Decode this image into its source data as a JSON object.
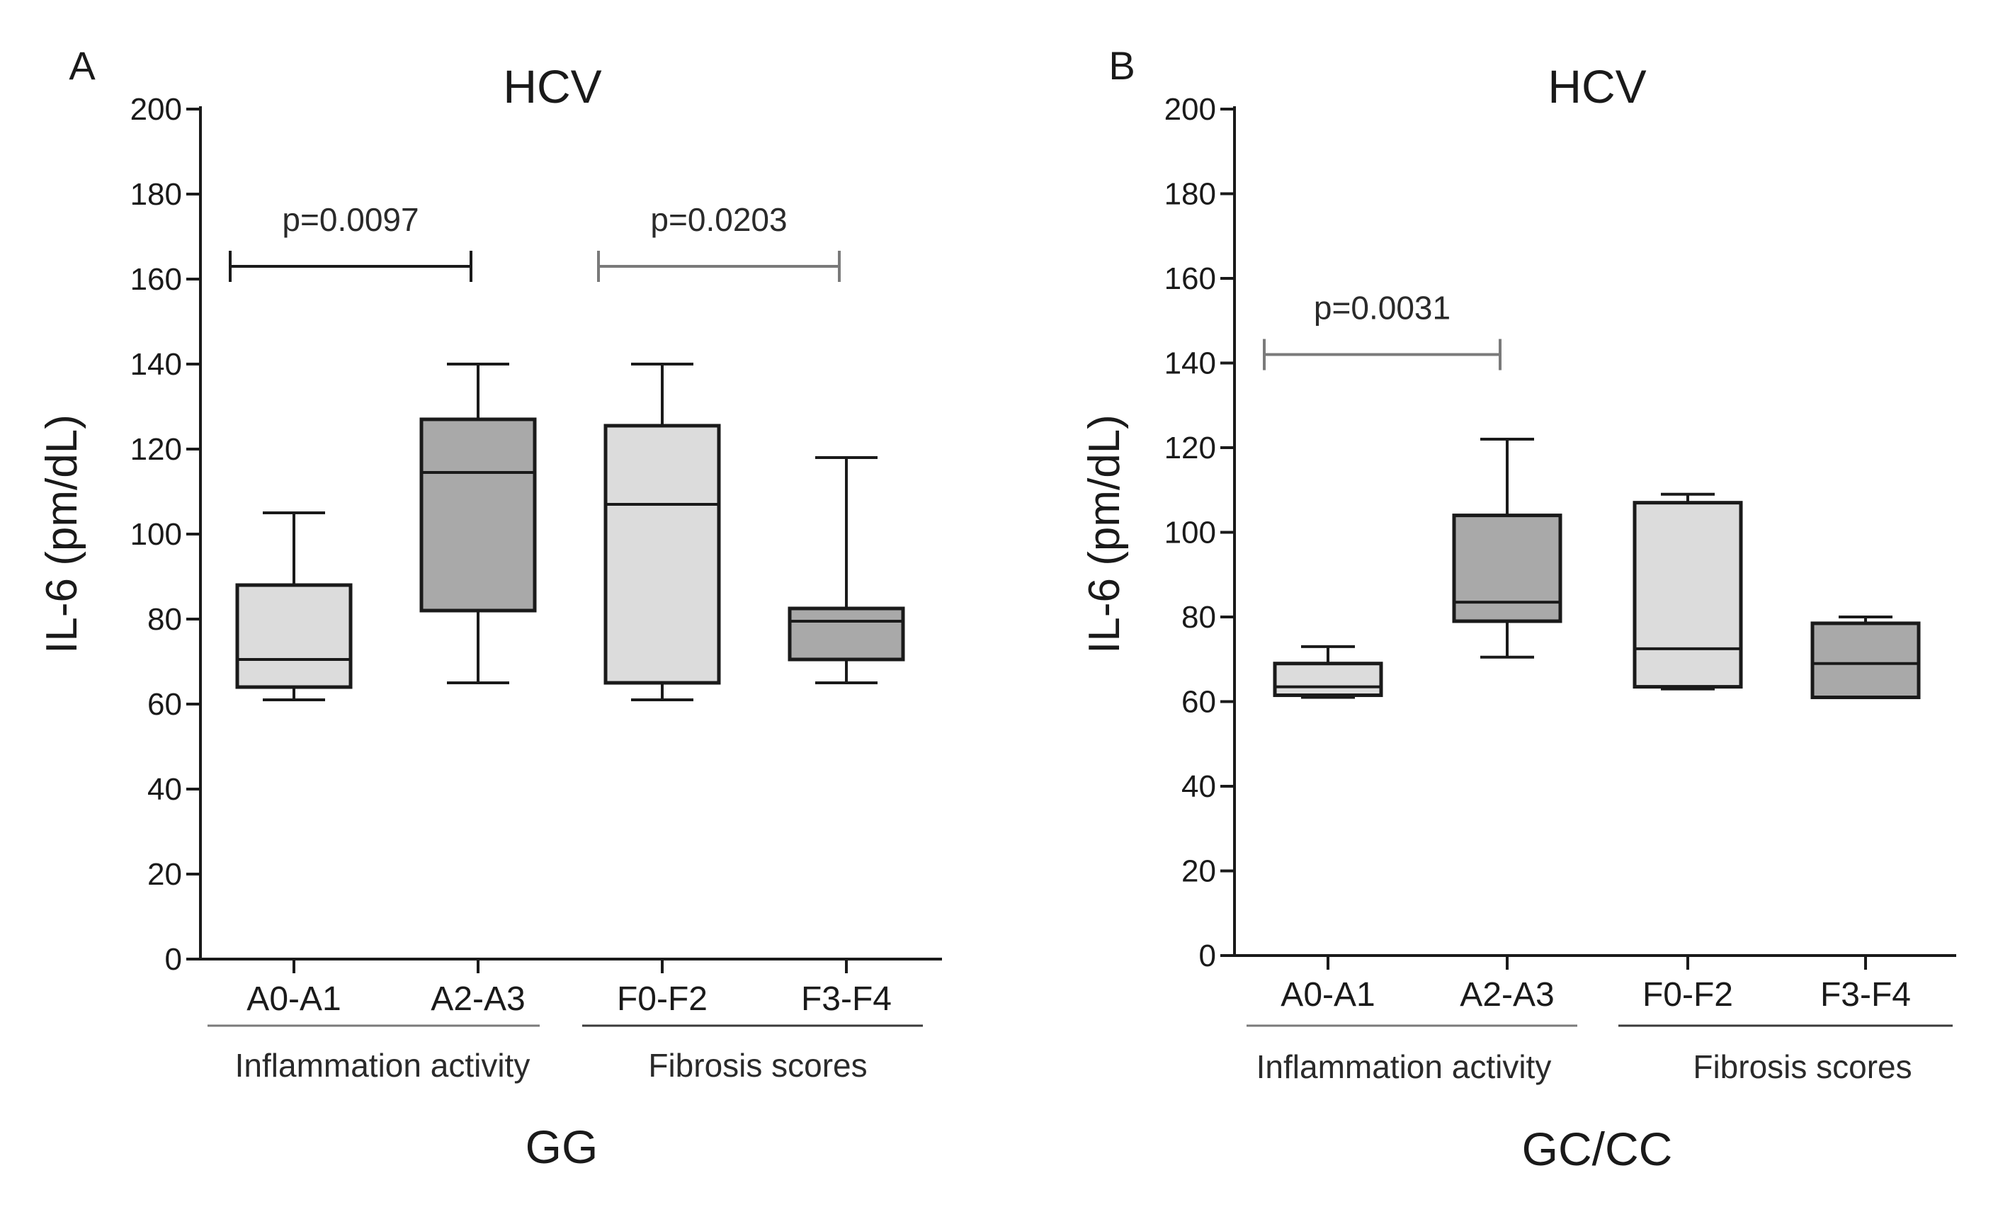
{
  "chart_data": [
    {
      "type": "box",
      "panel_letter": "A",
      "title": "HCV",
      "ylabel": "IL-6 (pm/dL)",
      "xlabel": "GG",
      "ylim": [
        0,
        200
      ],
      "yticks": [
        "0",
        "20",
        "40",
        "60",
        "80",
        "100",
        "120",
        "140",
        "160",
        "180",
        "200"
      ],
      "categories": [
        "A0-A1",
        "A2-A3",
        "F0-F2",
        "F3-F4"
      ],
      "groups": [
        {
          "label": "Inflammation activity",
          "categories": [
            "A0-A1",
            "A2-A3"
          ]
        },
        {
          "label": "Fibrosis scores",
          "categories": [
            "F0-F2",
            "F3-F4"
          ]
        }
      ],
      "boxes": [
        {
          "category": "A0-A1",
          "min": 61,
          "q1": 64,
          "median": 70.5,
          "q3": 88,
          "max": 105,
          "fill": "#dcdcdc"
        },
        {
          "category": "A2-A3",
          "min": 65,
          "q1": 82,
          "median": 114.5,
          "q3": 127,
          "max": 140,
          "fill": "#a9a9a9"
        },
        {
          "category": "F0-F2",
          "min": 61,
          "q1": 65,
          "median": 107,
          "q3": 125.5,
          "max": 140,
          "fill": "#dcdcdc"
        },
        {
          "category": "F3-F4",
          "min": 65,
          "q1": 70.5,
          "median": 79.5,
          "q3": 82.5,
          "max": 118,
          "fill": "#a9a9a9"
        }
      ],
      "comparisons": [
        {
          "from": "A0-A1",
          "to": "A2-A3",
          "y": 163,
          "label": "p=0.0097",
          "color": "#1a1a1a"
        },
        {
          "from": "F0-F2",
          "to": "F3-F4",
          "y": 163,
          "label": "p=0.0203",
          "color": "#7a7a7a"
        }
      ]
    },
    {
      "type": "box",
      "panel_letter": "B",
      "title": "HCV",
      "ylabel": "IL-6 (pm/dL)",
      "xlabel": "GC/CC",
      "ylim": [
        0,
        200
      ],
      "yticks": [
        "0",
        "20",
        "40",
        "60",
        "80",
        "100",
        "120",
        "140",
        "160",
        "180",
        "200"
      ],
      "categories": [
        "A0-A1",
        "A2-A3",
        "F0-F2",
        "F3-F4"
      ],
      "groups": [
        {
          "label": "Inflammation activity",
          "categories": [
            "A0-A1",
            "A2-A3"
          ]
        },
        {
          "label": "Fibrosis scores",
          "categories": [
            "F0-F2",
            "F3-F4"
          ]
        }
      ],
      "boxes": [
        {
          "category": "A0-A1",
          "min": 61,
          "q1": 61.5,
          "median": 63.5,
          "q3": 69,
          "max": 73,
          "fill": "#dcdcdc"
        },
        {
          "category": "A2-A3",
          "min": 70.5,
          "q1": 79,
          "median": 83.5,
          "q3": 104,
          "max": 122,
          "fill": "#a9a9a9"
        },
        {
          "category": "F0-F2",
          "min": 63,
          "q1": 63.5,
          "median": 72.5,
          "q3": 107,
          "max": 109,
          "fill": "#dcdcdc"
        },
        {
          "category": "F3-F4",
          "min": 61,
          "q1": 61,
          "median": 69,
          "q3": 78.5,
          "max": 80,
          "fill": "#a9a9a9"
        }
      ],
      "comparisons": [
        {
          "from": "A0-A1",
          "to": "A2-A3",
          "y": 142,
          "label": "p=0.0031",
          "color": "#7a7a7a"
        }
      ]
    }
  ]
}
